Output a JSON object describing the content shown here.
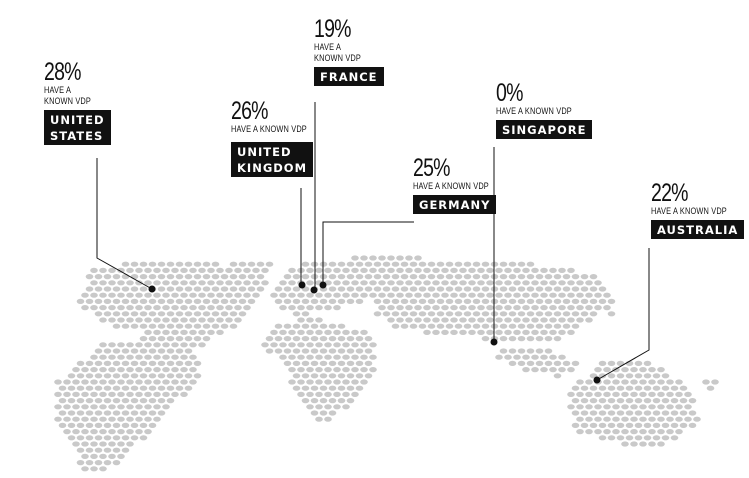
{
  "colors": {
    "land": "#c9c9c9",
    "ink": "#111111",
    "label_bg": "#111111",
    "label_text": "#ffffff"
  },
  "callouts": [
    {
      "id": "us",
      "percent": "28%",
      "caption": "HAVE A\nKNOWN VDP",
      "country": "UNITED\nSTATES"
    },
    {
      "id": "uk",
      "percent": "26%",
      "caption": "HAVE A KNOWN VDP",
      "country": "UNITED\nKINGDOM"
    },
    {
      "id": "fr",
      "percent": "19%",
      "caption": "HAVE A\nKNOWN VDP",
      "country": "FRANCE"
    },
    {
      "id": "de",
      "percent": "25%",
      "caption": "HAVE A KNOWN VDP",
      "country": "GERMANY"
    },
    {
      "id": "sg",
      "percent": "0%",
      "caption": "HAVE A KNOWN VDP",
      "country": "SINGAPORE"
    },
    {
      "id": "au",
      "percent": "22%",
      "caption": "HAVE A KNOWN VDP",
      "country": "AUSTRALIA"
    }
  ]
}
